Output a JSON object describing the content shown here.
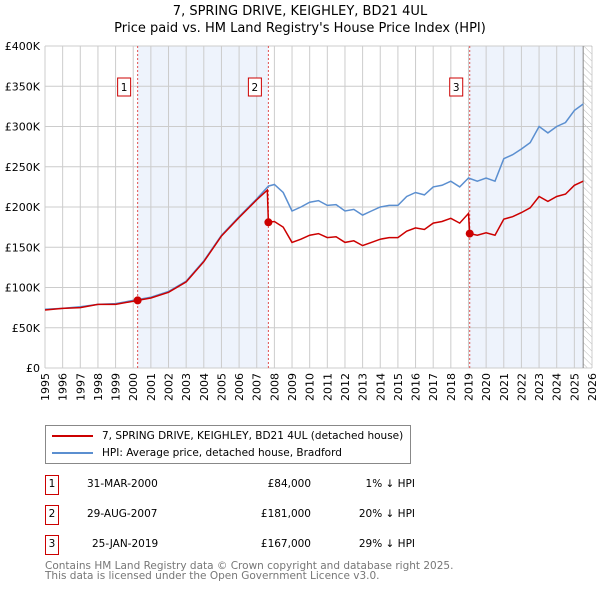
{
  "chart_data": {
    "type": "line",
    "title": "7, SPRING DRIVE, KEIGHLEY, BD21 4UL",
    "subtitle": "Price paid vs. HM Land Registry's House Price Index (HPI)",
    "xlim": [
      1995,
      2026
    ],
    "ylim": [
      0,
      400000
    ],
    "yticks": [
      0,
      50000,
      100000,
      150000,
      200000,
      250000,
      300000,
      350000,
      400000
    ],
    "ytick_labels": [
      "£0",
      "£50K",
      "£100K",
      "£150K",
      "£200K",
      "£250K",
      "£300K",
      "£350K",
      "£400K"
    ],
    "xticks": [
      1995,
      1996,
      1997,
      1998,
      1999,
      2000,
      2001,
      2002,
      2003,
      2004,
      2005,
      2006,
      2007,
      2008,
      2009,
      2010,
      2011,
      2012,
      2013,
      2014,
      2015,
      2016,
      2017,
      2018,
      2019,
      2020,
      2021,
      2022,
      2023,
      2024,
      2025,
      2026
    ],
    "grid": true,
    "shaded_ranges": [
      [
        2000.25,
        2007.66
      ],
      [
        2019.07,
        2025.5
      ]
    ],
    "hatched_from": 2025.5,
    "series": [
      {
        "name": "7, SPRING DRIVE, KEIGHLEY, BD21 4UL (detached house)",
        "color": "#cc0000",
        "x": [
          1995,
          1996,
          1997,
          1998,
          1999,
          2000,
          2000.25,
          2001,
          2002,
          2003,
          2004,
          2005,
          2006,
          2007,
          2007.6,
          2007.66,
          2008,
          2008.5,
          2009,
          2009.5,
          2010,
          2010.5,
          2011,
          2011.5,
          2012,
          2012.5,
          2013,
          2013.5,
          2014,
          2014.5,
          2015,
          2015.5,
          2016,
          2016.5,
          2017,
          2017.5,
          2018,
          2018.5,
          2019,
          2019.07,
          2019.5,
          2020,
          2020.5,
          2021,
          2021.5,
          2022,
          2022.5,
          2023,
          2023.5,
          2024,
          2024.5,
          2025,
          2025.5
        ],
        "y": [
          72000,
          74000,
          75000,
          79000,
          79000,
          83000,
          84000,
          87000,
          94000,
          107000,
          132000,
          164000,
          187000,
          209000,
          221000,
          181000,
          182000,
          175000,
          156000,
          160000,
          165000,
          167000,
          162000,
          163000,
          156000,
          158000,
          152000,
          156000,
          160000,
          162000,
          162000,
          170000,
          174000,
          172000,
          180000,
          182000,
          186000,
          180000,
          192000,
          167000,
          165000,
          168000,
          165000,
          185000,
          188000,
          193000,
          199000,
          213000,
          207000,
          213000,
          216000,
          227000,
          232000
        ]
      },
      {
        "name": "HPI: Average price, detached house, Bradford",
        "color": "#5b8fd0",
        "x": [
          1995,
          1996,
          1997,
          1998,
          1999,
          2000,
          2001,
          2002,
          2003,
          2004,
          2005,
          2006,
          2007,
          2007.66,
          2008,
          2008.5,
          2009,
          2009.5,
          2010,
          2010.5,
          2011,
          2011.5,
          2012,
          2012.5,
          2013,
          2013.5,
          2014,
          2014.5,
          2015,
          2015.5,
          2016,
          2016.5,
          2017,
          2017.5,
          2018,
          2018.5,
          2019,
          2019.5,
          2020,
          2020.5,
          2021,
          2021.5,
          2022,
          2022.5,
          2023,
          2023.5,
          2024,
          2024.5,
          2025,
          2025.5
        ],
        "y": [
          73000,
          74000,
          76000,
          79000,
          80000,
          84000,
          88000,
          95000,
          108000,
          133000,
          165000,
          188000,
          210000,
          226000,
          228000,
          218000,
          195000,
          200000,
          206000,
          208000,
          202000,
          203000,
          195000,
          197000,
          190000,
          195000,
          200000,
          202000,
          202000,
          213000,
          218000,
          215000,
          225000,
          227000,
          232000,
          225000,
          236000,
          232000,
          236000,
          232000,
          260000,
          265000,
          272000,
          280000,
          300000,
          292000,
          300000,
          305000,
          320000,
          328000
        ]
      }
    ],
    "sales": [
      {
        "label": "1",
        "x": 2000.25,
        "y": 84000,
        "date": "31-MAR-2000",
        "price": "£84,000",
        "hpi": "1% ↓ HPI"
      },
      {
        "label": "2",
        "x": 2007.66,
        "y": 181000,
        "date": "29-AUG-2007",
        "price": "£181,000",
        "hpi": "20% ↓ HPI"
      },
      {
        "label": "3",
        "x": 2019.07,
        "y": 167000,
        "date": "25-JAN-2019",
        "price": "£167,000",
        "hpi": "29% ↓ HPI"
      }
    ],
    "legend_position": "below"
  },
  "footer": {
    "line1": "Contains HM Land Registry data © Crown copyright and database right 2025.",
    "line2": "This data is licensed under the Open Government Licence v3.0."
  }
}
